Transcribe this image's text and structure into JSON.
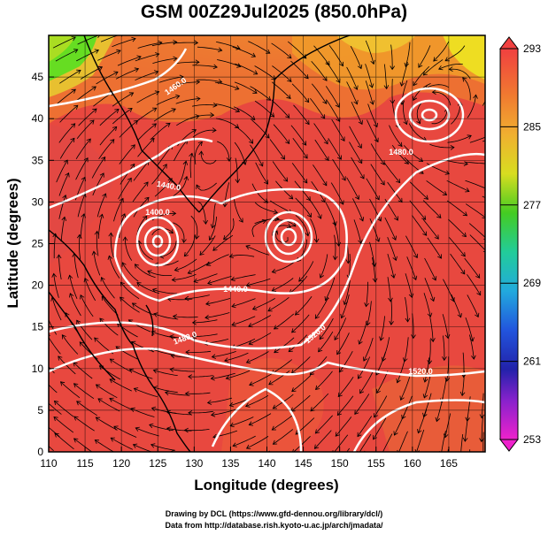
{
  "title": "GSM 00Z29Jul2025 (850.0hPa)",
  "x_axis": {
    "label": "Longitude (degrees)",
    "ticks": [
      "110",
      "115",
      "120",
      "125",
      "130",
      "135",
      "140",
      "145",
      "150",
      "155",
      "160",
      "165"
    ]
  },
  "y_axis": {
    "label": "Latitude (degrees)",
    "ticks": [
      "0",
      "5",
      "10",
      "15",
      "20",
      "25",
      "30",
      "35",
      "40",
      "45"
    ]
  },
  "colorbar": {
    "ticks": [
      "293",
      "285",
      "277",
      "269",
      "261",
      "253"
    ]
  },
  "contour_labels": [
    "1460.0",
    "1440.0",
    "1400.0",
    "1480.0",
    "1440.0",
    "1480.0",
    "1520.0",
    "1520.0"
  ],
  "credits": {
    "line1": "Drawing by DCL (https://www.gfd-dennou.org/library/dcl/)",
    "line2": "Data from http://database.rish.kyoto-u.ac.jp/arch/jmadata/"
  },
  "colors": {
    "warm": "#e8483f",
    "orange": "#f08a2a",
    "yellow": "#eedd22",
    "green": "#66dd22"
  }
}
